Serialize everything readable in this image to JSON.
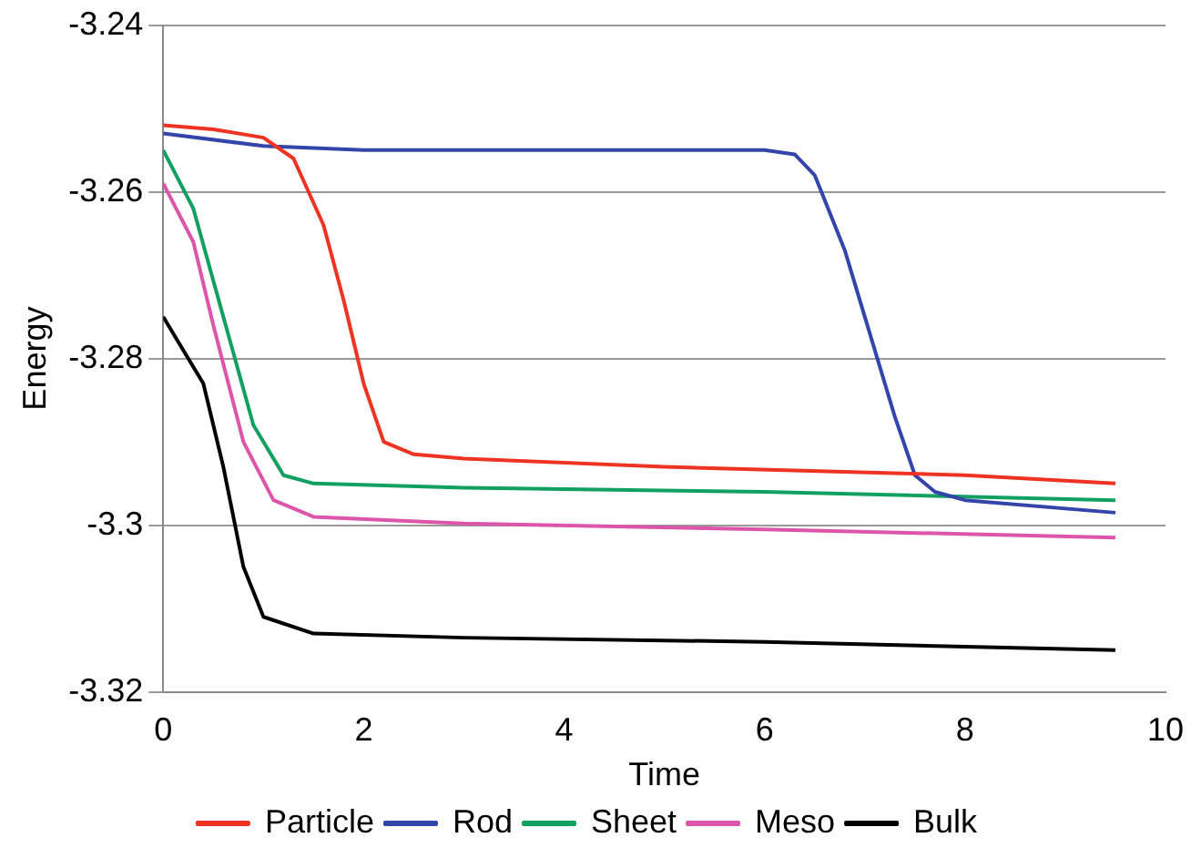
{
  "chart_data": {
    "type": "line",
    "xlabel": "Time",
    "ylabel": "Energy",
    "xlim": [
      0,
      10
    ],
    "xticks": [
      0,
      2,
      4,
      6,
      8,
      10
    ],
    "ylim": [
      -3.32,
      -3.24
    ],
    "yticks": [
      -3.32,
      -3.3,
      -3.28,
      -3.26,
      -3.24
    ],
    "grid": "y",
    "legend": "bottom",
    "marker": "none",
    "line_style": "solid",
    "series": [
      {
        "name": "Particle",
        "color": "#ee3322",
        "x": [
          0,
          0.5,
          1,
          1.3,
          1.6,
          1.8,
          2,
          2.2,
          2.5,
          3,
          5,
          8,
          9.5
        ],
        "values": [
          -3.252,
          -3.2525,
          -3.2535,
          -3.256,
          -3.264,
          -3.273,
          -3.283,
          -3.29,
          -3.2915,
          -3.292,
          -3.293,
          -3.294,
          -3.295
        ]
      },
      {
        "name": "Rod",
        "color": "#3344aa",
        "x": [
          0,
          1,
          2,
          4,
          6,
          6.3,
          6.5,
          6.8,
          7,
          7.3,
          7.5,
          7.7,
          8,
          9.5
        ],
        "values": [
          -3.253,
          -3.2545,
          -3.255,
          -3.255,
          -3.255,
          -3.2555,
          -3.258,
          -3.267,
          -3.275,
          -3.287,
          -3.294,
          -3.296,
          -3.297,
          -3.2985
        ]
      },
      {
        "name": "Sheet",
        "color": "#11a060",
        "x": [
          0,
          0.3,
          0.6,
          0.9,
          1.2,
          1.5,
          3,
          6,
          9.5
        ],
        "values": [
          -3.255,
          -3.262,
          -3.275,
          -3.288,
          -3.294,
          -3.295,
          -3.2955,
          -3.296,
          -3.297
        ]
      },
      {
        "name": "Meso",
        "color": "#dd55aa",
        "x": [
          0,
          0.3,
          0.5,
          0.8,
          1.1,
          1.5,
          3,
          6,
          9.5
        ],
        "values": [
          -3.259,
          -3.266,
          -3.276,
          -3.29,
          -3.297,
          -3.299,
          -3.2998,
          -3.3005,
          -3.3015
        ]
      },
      {
        "name": "Bulk",
        "color": "#000000",
        "x": [
          0,
          0.2,
          0.4,
          0.6,
          0.8,
          1,
          1.5,
          3,
          6,
          9.5
        ],
        "values": [
          -3.275,
          -3.279,
          -3.283,
          -3.293,
          -3.305,
          -3.311,
          -3.313,
          -3.3135,
          -3.314,
          -3.315
        ]
      }
    ]
  }
}
